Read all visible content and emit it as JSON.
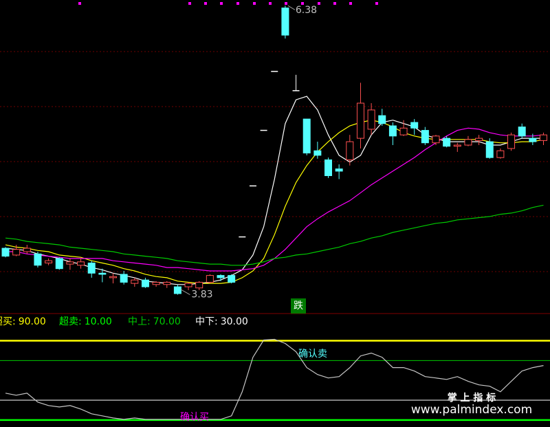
{
  "chart_data": [
    {
      "type": "candlestick",
      "open": [
        4.24,
        4.18,
        4.21,
        4.19,
        4.11,
        4.15,
        4.1,
        4.09,
        4.11,
        4.02,
        3.98,
        4.01,
        3.93,
        3.96,
        3.92,
        3.92,
        3.9,
        3.9,
        3.89,
        3.94,
        4.0,
        4.0,
        4.34,
        4.79,
        5.28,
        5.8,
        6.36,
        5.63,
        5.38,
        5.1,
        5.02,
        4.94,
        5.02,
        5.21,
        5.29,
        5.41,
        5.32,
        5.24,
        5.35,
        5.28,
        5.17,
        5.21,
        5.14,
        5.15,
        5.19,
        5.18,
        5.04,
        5.12,
        5.31,
        5.21,
        5.19
      ],
      "high": [
        4.25,
        4.27,
        4.27,
        4.21,
        4.15,
        4.16,
        4.15,
        4.15,
        4.13,
        4.06,
        4.02,
        4.04,
        3.98,
        3.98,
        3.95,
        3.95,
        3.92,
        3.94,
        3.95,
        4.01,
        4.01,
        4.01,
        4.34,
        4.79,
        5.28,
        5.8,
        6.38,
        5.77,
        5.38,
        5.18,
        5.04,
        4.98,
        5.24,
        5.7,
        5.52,
        5.47,
        5.35,
        5.37,
        5.38,
        5.31,
        5.24,
        5.23,
        5.17,
        5.23,
        5.24,
        5.21,
        5.12,
        5.26,
        5.34,
        5.25,
        5.26
      ],
      "low": [
        4.16,
        4.17,
        4.19,
        4.07,
        4.09,
        4.05,
        4.05,
        4.06,
        3.98,
        3.94,
        3.93,
        3.92,
        3.9,
        3.89,
        3.9,
        3.89,
        3.83,
        3.87,
        3.87,
        3.93,
        3.95,
        3.93,
        4.34,
        4.79,
        5.28,
        5.8,
        6.09,
        5.63,
        5.06,
        5.03,
        4.86,
        4.85,
        4.97,
        5.12,
        5.24,
        5.32,
        5.15,
        5.23,
        5.24,
        5.15,
        5.15,
        5.13,
        5.09,
        5.14,
        5.15,
        5.03,
        5.03,
        5.1,
        5.21,
        5.15,
        5.15
      ],
      "close": [
        4.17,
        4.23,
        4.24,
        4.09,
        4.13,
        4.06,
        4.12,
        4.12,
        4.02,
        4.01,
        3.99,
        3.94,
        3.96,
        3.9,
        3.94,
        3.94,
        3.84,
        3.93,
        3.94,
        4.0,
        3.98,
        3.94,
        4.34,
        4.79,
        5.28,
        5.8,
        6.12,
        5.63,
        5.08,
        5.06,
        4.88,
        4.92,
        5.18,
        5.52,
        5.46,
        5.34,
        5.23,
        5.3,
        5.3,
        5.17,
        5.23,
        5.14,
        5.15,
        5.2,
        5.21,
        5.04,
        5.1,
        5.24,
        5.23,
        5.18,
        5.24
      ],
      "up_color": "#ff5050",
      "down_color": "#54ffff",
      "flat_color": "#ffffff",
      "series": [
        {
          "color": "#ffffff",
          "values": [
            4.24,
            4.23,
            4.22,
            4.19,
            4.17,
            4.15,
            4.12,
            4.1,
            4.07,
            4.05,
            4.02,
            4.0,
            3.98,
            3.95,
            3.94,
            3.93,
            3.92,
            3.92,
            3.93,
            3.94,
            3.96,
            4.0,
            4.05,
            4.18,
            4.43,
            4.85,
            5.34,
            5.55,
            5.58,
            5.46,
            5.24,
            5.06,
            5.0,
            5.06,
            5.24,
            5.35,
            5.37,
            5.34,
            5.31,
            5.24,
            5.21,
            5.18,
            5.18,
            5.18,
            5.18,
            5.15,
            5.15,
            5.18,
            5.21,
            5.21,
            5.21
          ]
        },
        {
          "color": "#ffff00",
          "values": [
            4.27,
            4.25,
            4.24,
            4.22,
            4.21,
            4.18,
            4.17,
            4.16,
            4.13,
            4.11,
            4.09,
            4.06,
            4.04,
            4.01,
            3.99,
            3.98,
            3.95,
            3.94,
            3.93,
            3.93,
            3.93,
            3.94,
            3.98,
            4.04,
            4.15,
            4.36,
            4.61,
            4.82,
            4.97,
            5.09,
            5.18,
            5.26,
            5.32,
            5.35,
            5.37,
            5.35,
            5.31,
            5.26,
            5.23,
            5.21,
            5.2,
            5.2,
            5.2,
            5.2,
            5.2,
            5.18,
            5.17,
            5.17,
            5.18,
            5.18,
            5.2
          ]
        },
        {
          "color": "#ff00ff",
          "values": [
            4.21,
            4.21,
            4.19,
            4.18,
            4.17,
            4.16,
            4.15,
            4.15,
            4.15,
            4.15,
            4.13,
            4.12,
            4.11,
            4.1,
            4.09,
            4.07,
            4.07,
            4.06,
            4.05,
            4.04,
            4.04,
            4.04,
            4.05,
            4.06,
            4.09,
            4.15,
            4.23,
            4.33,
            4.43,
            4.5,
            4.56,
            4.61,
            4.66,
            4.73,
            4.8,
            4.86,
            4.92,
            4.98,
            5.04,
            5.11,
            5.17,
            5.23,
            5.28,
            5.3,
            5.29,
            5.26,
            5.24,
            5.23,
            5.23,
            5.23,
            5.24
          ]
        },
        {
          "color": "#00cc00",
          "values": [
            4.33,
            4.32,
            4.3,
            4.29,
            4.28,
            4.27,
            4.25,
            4.24,
            4.23,
            4.22,
            4.21,
            4.19,
            4.18,
            4.17,
            4.16,
            4.15,
            4.13,
            4.12,
            4.11,
            4.1,
            4.1,
            4.09,
            4.09,
            4.1,
            4.12,
            4.15,
            4.16,
            4.18,
            4.19,
            4.21,
            4.23,
            4.25,
            4.28,
            4.3,
            4.33,
            4.35,
            4.38,
            4.4,
            4.42,
            4.44,
            4.46,
            4.47,
            4.49,
            4.5,
            4.51,
            4.52,
            4.54,
            4.55,
            4.57,
            4.6,
            4.62
          ]
        }
      ],
      "high_label": 6.38,
      "low_label": 3.83,
      "signal": "跌",
      "ylim": [
        3.67,
        6.43
      ]
    },
    {
      "type": "line",
      "levels": [
        {
          "name": "超买:",
          "label": "90.00",
          "value": 90,
          "color": "#ffff00"
        },
        {
          "name": "超卖:",
          "label": "10.00",
          "value": 10,
          "color": "#00ff00"
        },
        {
          "name": "中上:",
          "label": "70.00",
          "value": 70,
          "color": "#00cc00"
        },
        {
          "name": "中下:",
          "label": "30.00",
          "value": 30,
          "color": "#ffffff"
        }
      ],
      "series": [
        {
          "color": "#c8c8c8",
          "values": [
            37.1,
            35.0,
            37.1,
            28.1,
            24.6,
            23.2,
            24.6,
            21.1,
            16.3,
            14.2,
            12.1,
            10.7,
            12.1,
            10.7,
            10.7,
            10.7,
            10.7,
            10.7,
            10.7,
            10.7,
            10.7,
            14.2,
            38.5,
            73.3,
            90.7,
            91.4,
            87.2,
            78.9,
            62.9,
            55.9,
            52.4,
            53.8,
            62.9,
            74.7,
            77.5,
            73.3,
            62.9,
            62.9,
            59.4,
            53.8,
            52.4,
            51.0,
            53.8,
            49.0,
            45.5,
            44.1,
            38.5,
            49.0,
            59.4,
            62.9,
            65.0
          ]
        }
      ],
      "annotations": [
        "确认卖",
        "确认买"
      ],
      "ylim": [
        3,
        116
      ]
    }
  ],
  "watermark": {
    "title": "掌 上 指 标",
    "url": "www.palmindex.com"
  }
}
